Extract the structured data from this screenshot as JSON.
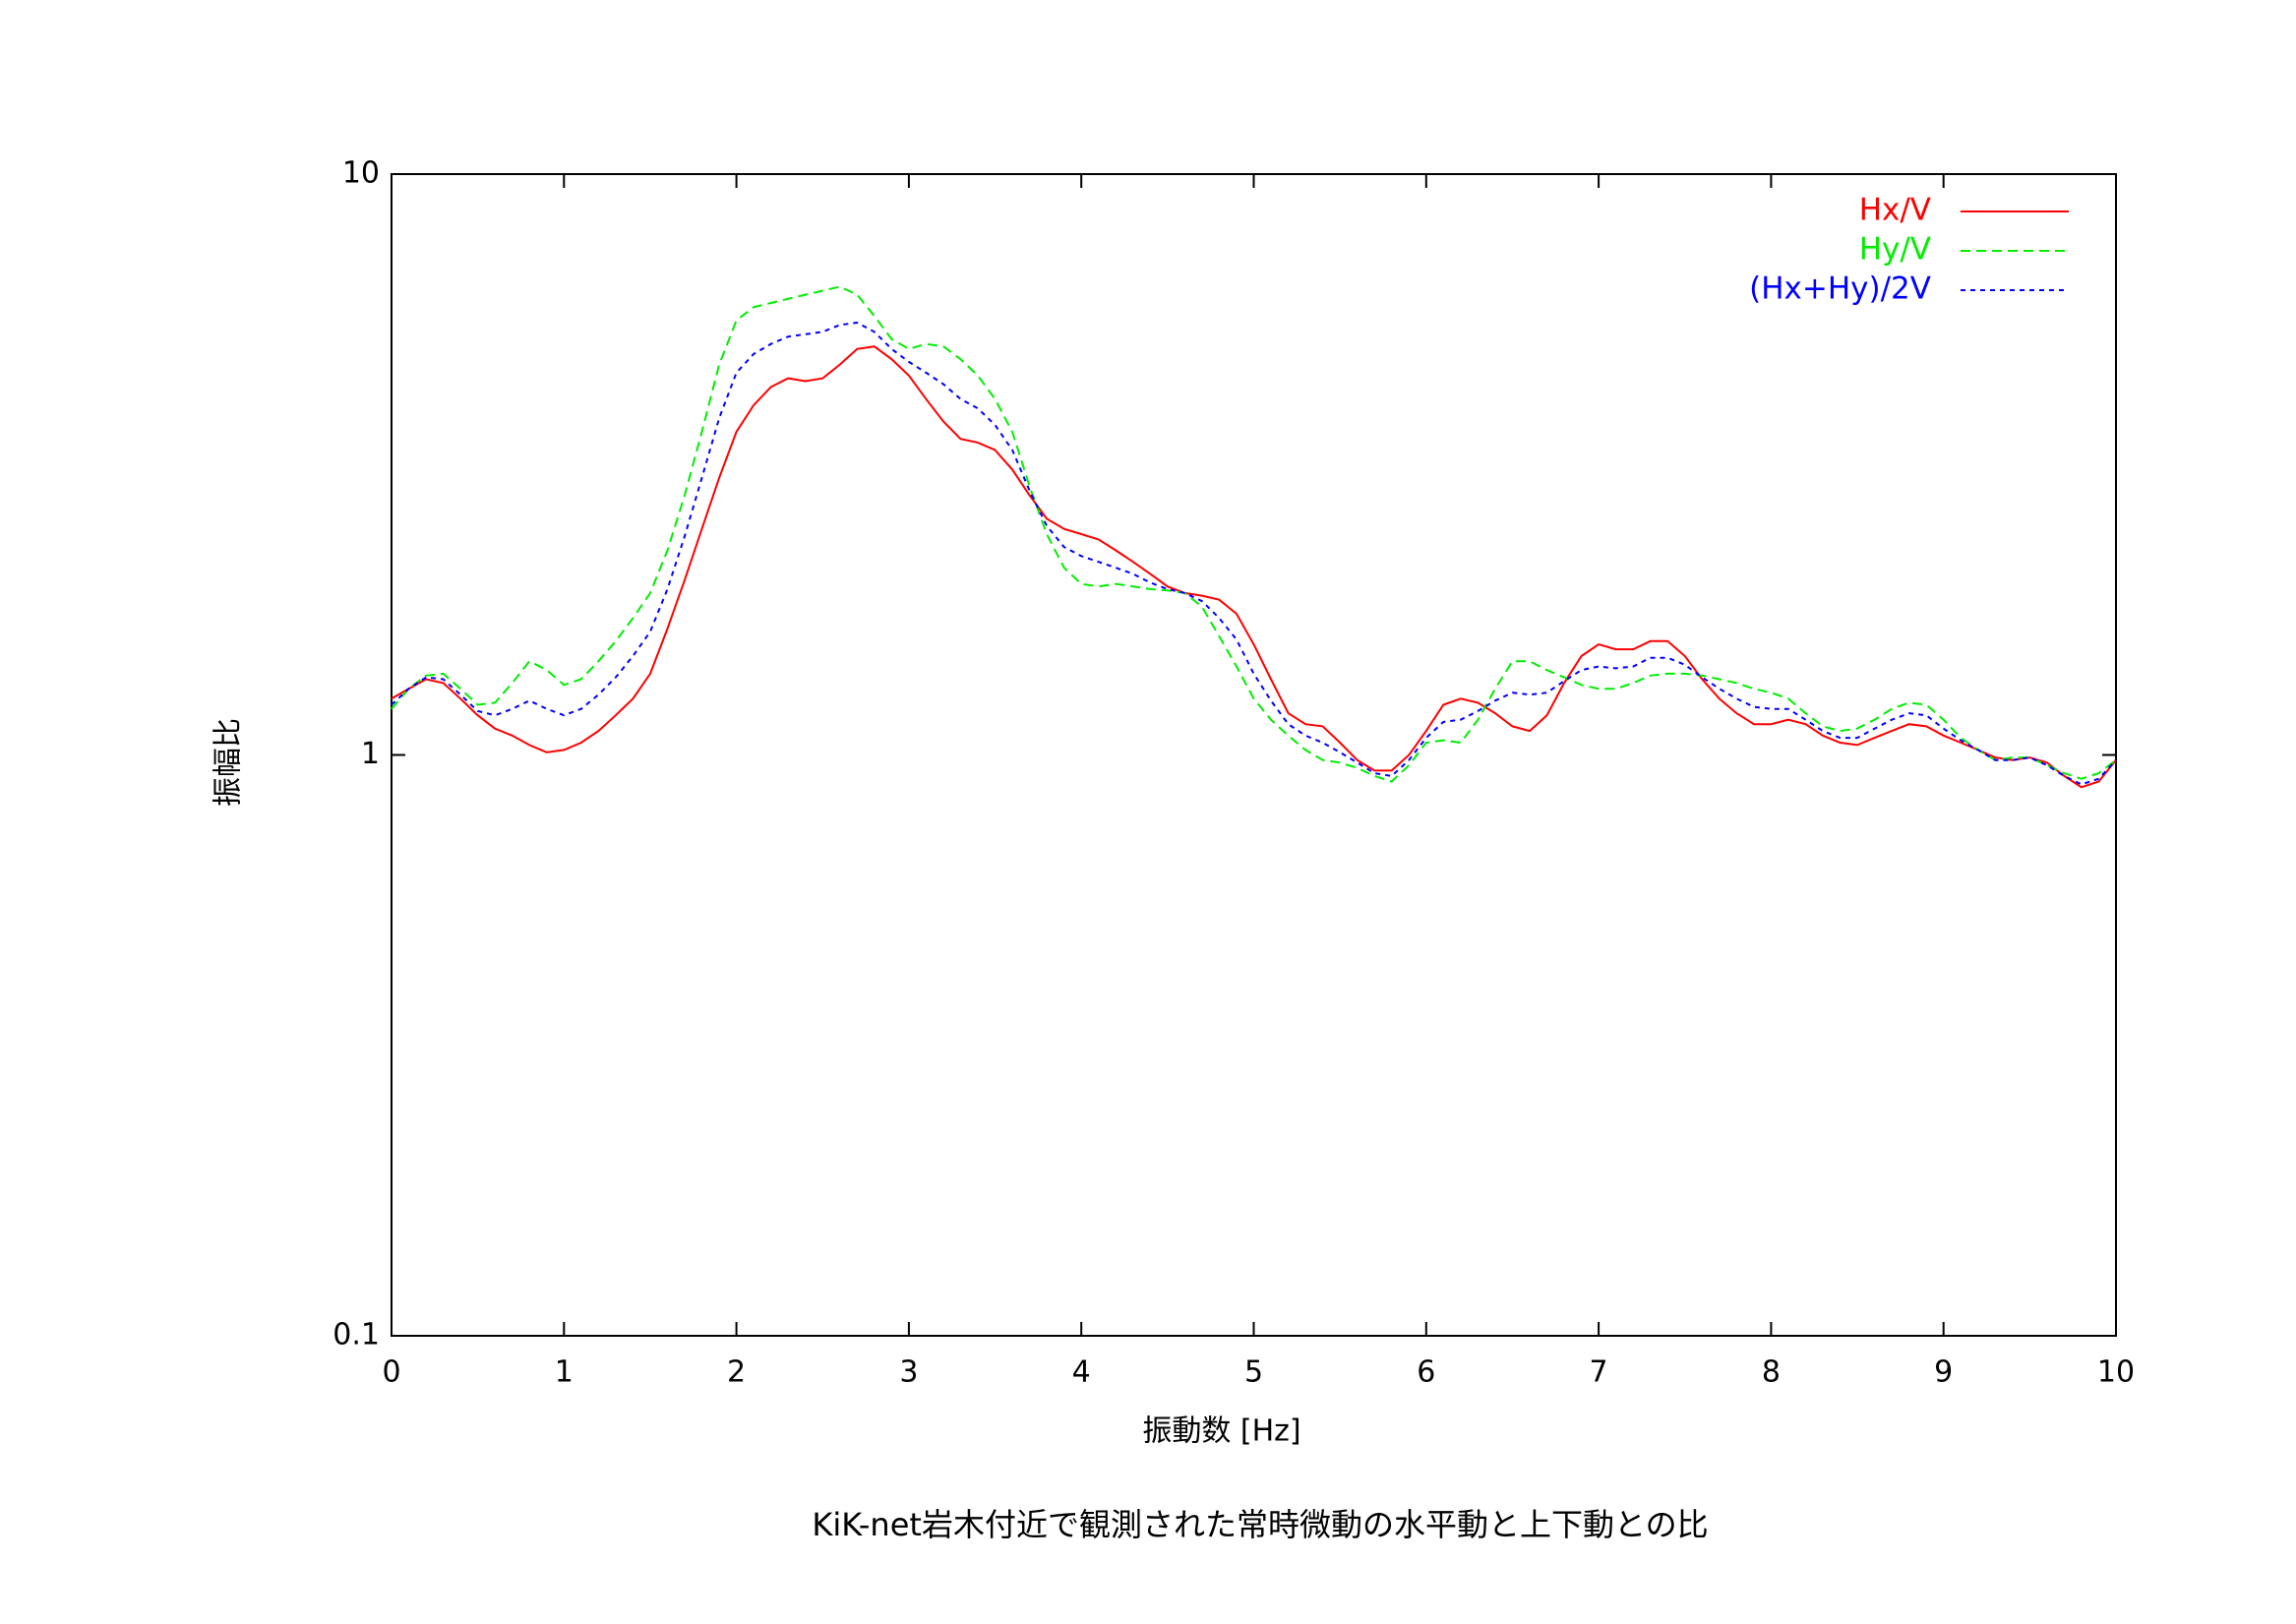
{
  "chart_data": {
    "type": "line",
    "title": "KiK-net岩木付近で観測された常時微動の水平動と上下動との比",
    "x_label": "振動数 [Hz]",
    "y_label": "振幅比",
    "xlim": [
      0,
      10
    ],
    "xticks": [
      0,
      1,
      2,
      3,
      4,
      5,
      6,
      7,
      8,
      9,
      10
    ],
    "ylim": [
      0.1,
      10
    ],
    "yticks": [
      0.1,
      1,
      10
    ],
    "y_scale": "log",
    "grid": false,
    "legend": "upper right",
    "x": [
      0,
      0.1,
      0.2,
      0.3,
      0.4,
      0.5,
      0.6,
      0.7,
      0.8,
      0.9,
      1,
      1.1,
      1.2,
      1.3,
      1.4,
      1.5,
      1.6,
      1.7,
      1.8,
      1.9,
      2,
      2.1,
      2.2,
      2.3,
      2.4,
      2.5,
      2.6,
      2.7,
      2.8,
      2.9,
      3,
      3.1,
      3.2,
      3.3,
      3.4,
      3.5,
      3.6,
      3.7,
      3.8,
      3.9,
      4,
      4.1,
      4.2,
      4.3,
      4.4,
      4.5,
      4.6,
      4.7,
      4.8,
      4.9,
      5,
      5.1,
      5.2,
      5.3,
      5.4,
      5.5,
      5.6,
      5.7,
      5.8,
      5.9,
      6,
      6.1,
      6.2,
      6.3,
      6.4,
      6.5,
      6.6,
      6.7,
      6.8,
      6.9,
      7,
      7.1,
      7.2,
      7.3,
      7.4,
      7.5,
      7.6,
      7.7,
      7.8,
      7.9,
      8,
      8.1,
      8.2,
      8.3,
      8.4,
      8.5,
      8.6,
      8.7,
      8.8,
      8.9,
      9,
      9.1,
      9.2,
      9.3,
      9.4,
      9.5,
      9.6,
      9.7,
      9.8,
      9.9,
      10
    ],
    "series": [
      {
        "name": "Hx/V",
        "color": "#ff0000",
        "dash": "solid",
        "values": [
          1.25,
          1.3,
          1.35,
          1.33,
          1.25,
          1.17,
          1.11,
          1.08,
          1.04,
          1.01,
          1.02,
          1.05,
          1.1,
          1.17,
          1.25,
          1.38,
          1.65,
          2.0,
          2.45,
          3.0,
          3.6,
          4.0,
          4.3,
          4.45,
          4.4,
          4.45,
          4.7,
          5.0,
          5.05,
          4.8,
          4.5,
          4.1,
          3.75,
          3.5,
          3.45,
          3.35,
          3.1,
          2.8,
          2.55,
          2.45,
          2.4,
          2.35,
          2.25,
          2.15,
          2.05,
          1.95,
          1.9,
          1.88,
          1.85,
          1.75,
          1.55,
          1.35,
          1.18,
          1.13,
          1.12,
          1.05,
          0.98,
          0.94,
          0.94,
          1.0,
          1.1,
          1.22,
          1.25,
          1.23,
          1.18,
          1.12,
          1.1,
          1.17,
          1.33,
          1.48,
          1.55,
          1.52,
          1.52,
          1.57,
          1.57,
          1.48,
          1.35,
          1.25,
          1.18,
          1.13,
          1.13,
          1.15,
          1.13,
          1.08,
          1.05,
          1.04,
          1.07,
          1.1,
          1.13,
          1.12,
          1.08,
          1.05,
          1.02,
          0.99,
          0.98,
          0.99,
          0.97,
          0.92,
          0.88,
          0.9,
          0.98
        ]
      },
      {
        "name": "Hy/V",
        "color": "#00ee00",
        "dash": "dashed",
        "values": [
          1.2,
          1.3,
          1.37,
          1.38,
          1.3,
          1.22,
          1.23,
          1.33,
          1.45,
          1.4,
          1.32,
          1.35,
          1.45,
          1.57,
          1.72,
          1.9,
          2.25,
          2.8,
          3.6,
          4.7,
          5.6,
          5.9,
          6.0,
          6.1,
          6.2,
          6.3,
          6.4,
          6.2,
          5.7,
          5.2,
          5.0,
          5.1,
          5.05,
          4.8,
          4.5,
          4.1,
          3.6,
          2.9,
          2.4,
          2.1,
          1.97,
          1.95,
          1.97,
          1.95,
          1.93,
          1.92,
          1.9,
          1.8,
          1.6,
          1.42,
          1.25,
          1.15,
          1.08,
          1.02,
          0.98,
          0.97,
          0.95,
          0.92,
          0.9,
          0.96,
          1.05,
          1.06,
          1.05,
          1.15,
          1.3,
          1.45,
          1.45,
          1.4,
          1.36,
          1.32,
          1.3,
          1.3,
          1.33,
          1.37,
          1.38,
          1.38,
          1.37,
          1.35,
          1.33,
          1.3,
          1.28,
          1.25,
          1.18,
          1.12,
          1.1,
          1.11,
          1.15,
          1.2,
          1.23,
          1.22,
          1.15,
          1.07,
          1.02,
          0.98,
          0.99,
          0.99,
          0.96,
          0.93,
          0.91,
          0.93,
          0.98
        ]
      },
      {
        "name": "(Hx+Hy)/2V",
        "color": "#0000ff",
        "dash": "dotted",
        "values": [
          1.22,
          1.3,
          1.36,
          1.35,
          1.27,
          1.19,
          1.17,
          1.2,
          1.24,
          1.2,
          1.17,
          1.2,
          1.27,
          1.36,
          1.48,
          1.63,
          1.93,
          2.38,
          3.0,
          3.8,
          4.55,
          4.9,
          5.1,
          5.25,
          5.3,
          5.35,
          5.5,
          5.55,
          5.35,
          5.0,
          4.75,
          4.55,
          4.35,
          4.1,
          3.95,
          3.7,
          3.35,
          2.85,
          2.48,
          2.28,
          2.2,
          2.15,
          2.1,
          2.05,
          1.98,
          1.93,
          1.9,
          1.84,
          1.72,
          1.58,
          1.38,
          1.24,
          1.13,
          1.08,
          1.05,
          1.01,
          0.97,
          0.93,
          0.92,
          0.98,
          1.07,
          1.14,
          1.15,
          1.19,
          1.24,
          1.28,
          1.27,
          1.28,
          1.34,
          1.4,
          1.42,
          1.41,
          1.42,
          1.47,
          1.47,
          1.43,
          1.36,
          1.3,
          1.25,
          1.21,
          1.2,
          1.2,
          1.15,
          1.1,
          1.07,
          1.07,
          1.11,
          1.15,
          1.18,
          1.17,
          1.11,
          1.06,
          1.02,
          0.98,
          0.98,
          0.99,
          0.96,
          0.92,
          0.89,
          0.91,
          0.98
        ]
      }
    ]
  }
}
